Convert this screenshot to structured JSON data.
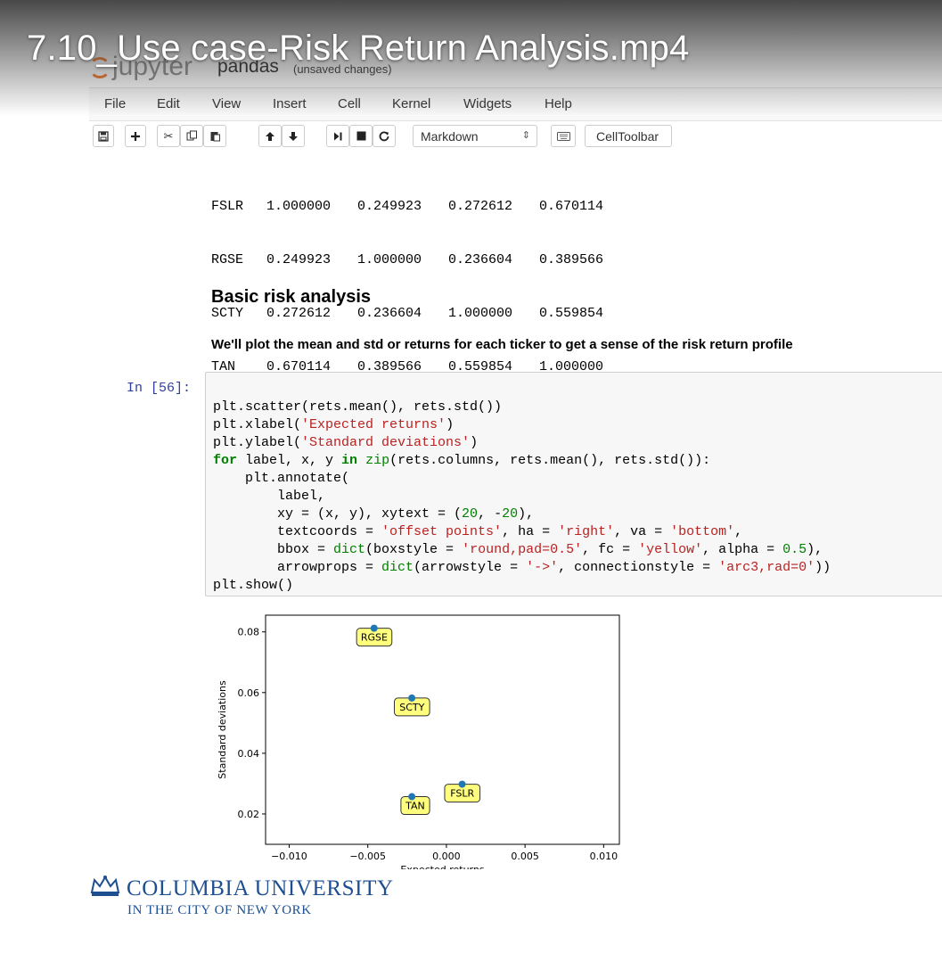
{
  "video": {
    "title": "7.10_Use case-Risk Return Analysis.mp4"
  },
  "header": {
    "logo_text": "jupyter",
    "notebook_name": "pandas",
    "status": "(unsaved changes)"
  },
  "menu": [
    "File",
    "Edit",
    "View",
    "Insert",
    "Cell",
    "Kernel",
    "Widgets",
    "Help"
  ],
  "toolbar": {
    "icons": [
      "save-icon",
      "plus-icon",
      "cut-icon",
      "copy-icon",
      "paste-icon",
      "arrow-up-icon",
      "arrow-down-icon",
      "step-forward-icon",
      "stop-icon",
      "restart-icon",
      "keyboard-icon"
    ],
    "cell_type": "Markdown",
    "celltoolbar_label": "CellToolbar"
  },
  "output": {
    "rows": [
      {
        "label": "FSLR",
        "values": [
          "1.000000",
          "0.249923",
          "0.272612",
          "0.670114"
        ]
      },
      {
        "label": "RGSE",
        "values": [
          "0.249923",
          "1.000000",
          "0.236604",
          "0.389566"
        ]
      },
      {
        "label": "SCTY",
        "values": [
          "0.272612",
          "0.236604",
          "1.000000",
          "0.559854"
        ]
      },
      {
        "label": "TAN",
        "values": [
          "0.670114",
          "0.389566",
          "0.559854",
          "1.000000"
        ]
      }
    ]
  },
  "markdown": {
    "heading": "Basic risk analysis",
    "paragraph": "We'll plot the mean and std or returns for each ticker to get a sense of the risk return profile"
  },
  "code_cell": {
    "prompt": "In [56]:",
    "lines": [
      "plt.scatter(rets.mean(), rets.std())",
      "plt.xlabel('Expected returns')",
      "plt.ylabel('Standard deviations')",
      "for label, x, y in zip(rets.columns, rets.mean(), rets.std()):",
      "    plt.annotate(",
      "        label,",
      "        xy = (x, y), xytext = (20, -20),",
      "        textcoords = 'offset points', ha = 'right', va = 'bottom',",
      "        bbox = dict(boxstyle = 'round,pad=0.5', fc = 'yellow', alpha = 0.5),",
      "        arrowprops = dict(arrowstyle = '->', connectionstyle = 'arc3,rad=0'))",
      "plt.show()"
    ]
  },
  "chart_data": {
    "type": "scatter",
    "xlabel": "Expected returns",
    "ylabel": "Standard deviations",
    "xlim": [
      -0.0115,
      0.011
    ],
    "ylim": [
      0.01,
      0.0855
    ],
    "xticks": [
      -0.01,
      -0.005,
      0.0,
      0.005,
      0.01
    ],
    "xtick_labels": [
      "−0.010",
      "−0.005",
      "0.000",
      "0.005",
      "0.010"
    ],
    "yticks": [
      0.02,
      0.04,
      0.06,
      0.08
    ],
    "ytick_labels": [
      "0.02",
      "0.04",
      "0.06",
      "0.08"
    ],
    "point_color": "#1f77b4",
    "annotation_color": "#ffff66",
    "points": [
      {
        "label": "RGSE",
        "x": -0.0046,
        "y": 0.0812
      },
      {
        "label": "SCTY",
        "x": -0.0022,
        "y": 0.0582
      },
      {
        "label": "FSLR",
        "x": 0.001,
        "y": 0.0298
      },
      {
        "label": "TAN",
        "x": -0.0022,
        "y": 0.0257
      }
    ]
  },
  "branding": {
    "university": "COLUMBIA UNIVERSITY",
    "subtitle": "IN THE CITY OF NEW YORK",
    "color": "#1d4f91"
  }
}
